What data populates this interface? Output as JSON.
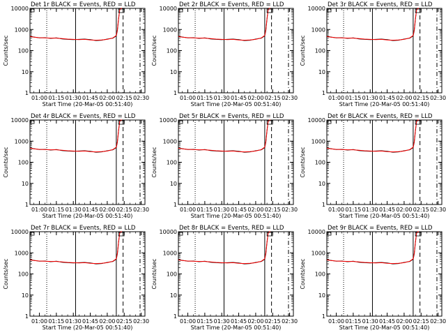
{
  "colors": {
    "events": "#000000",
    "lld": "#ff0000",
    "background": "#ffffff"
  },
  "chart_data": [
    {
      "type": "line",
      "title": "Det 1r BLACK = Events, RED = LLD"
    },
    {
      "type": "line",
      "title": "Det 2r BLACK = Events, RED = LLD"
    },
    {
      "type": "line",
      "title": "Det 3r BLACK = Events, RED = LLD"
    },
    {
      "type": "line",
      "title": "Det 4r BLACK = Events, RED = LLD"
    },
    {
      "type": "line",
      "title": "Det 5r BLACK = Events, RED = LLD"
    },
    {
      "type": "line",
      "title": "Det 6r BLACK = Events, RED = LLD"
    },
    {
      "type": "line",
      "title": "Det 7r BLACK = Events, RED = LLD"
    },
    {
      "type": "line",
      "title": "Det 8r BLACK = Events, RED = LLD"
    },
    {
      "type": "line",
      "title": "Det 9r BLACK = Events, RED = LLD"
    }
  ],
  "shared": {
    "xlabel": "Start Time (20-Mar-05 00:51:40)",
    "ylabel": "Counts/sec",
    "x_ticks": [
      "01:00",
      "01:15",
      "01:30",
      "01:45",
      "02:00",
      "02:15",
      "02:30"
    ],
    "x_tick_minutes": [
      60,
      75,
      90,
      105,
      120,
      135,
      150
    ],
    "xlim_minutes": [
      51.67,
      153.33
    ],
    "y_ticks": [
      "1",
      "10",
      "100",
      "1000",
      "10000"
    ],
    "y_tick_values": [
      1,
      10,
      100,
      1000,
      10000
    ],
    "ylim": [
      1,
      10000
    ],
    "y_scale": "log",
    "vlines_minutes": {
      "dotted": 66.5,
      "solid1": 92,
      "solid2": 128,
      "dash1": 134,
      "dash2": 149
    },
    "events_series": {
      "x_minutes": [
        51.67,
        55,
        60,
        65,
        70,
        75,
        80,
        85,
        90,
        95,
        100,
        105,
        110,
        115,
        120,
        125,
        128,
        129,
        130,
        131,
        132,
        133
      ],
      "values": [
        480,
        440,
        400,
        410,
        380,
        400,
        360,
        340,
        330,
        340,
        350,
        330,
        300,
        310,
        350,
        390,
        500,
        900,
        3000,
        9000,
        10000,
        10000
      ]
    },
    "lld_series": {
      "x_minutes": [
        51.67,
        55,
        60,
        65,
        70,
        75,
        80,
        85,
        90,
        95,
        100,
        105,
        110,
        115,
        120,
        125,
        128,
        129,
        130,
        131,
        132,
        133
      ],
      "values": [
        470,
        430,
        410,
        400,
        390,
        390,
        370,
        350,
        340,
        330,
        340,
        320,
        310,
        320,
        340,
        400,
        520,
        1000,
        3200,
        8500,
        10000,
        10000
      ]
    }
  }
}
